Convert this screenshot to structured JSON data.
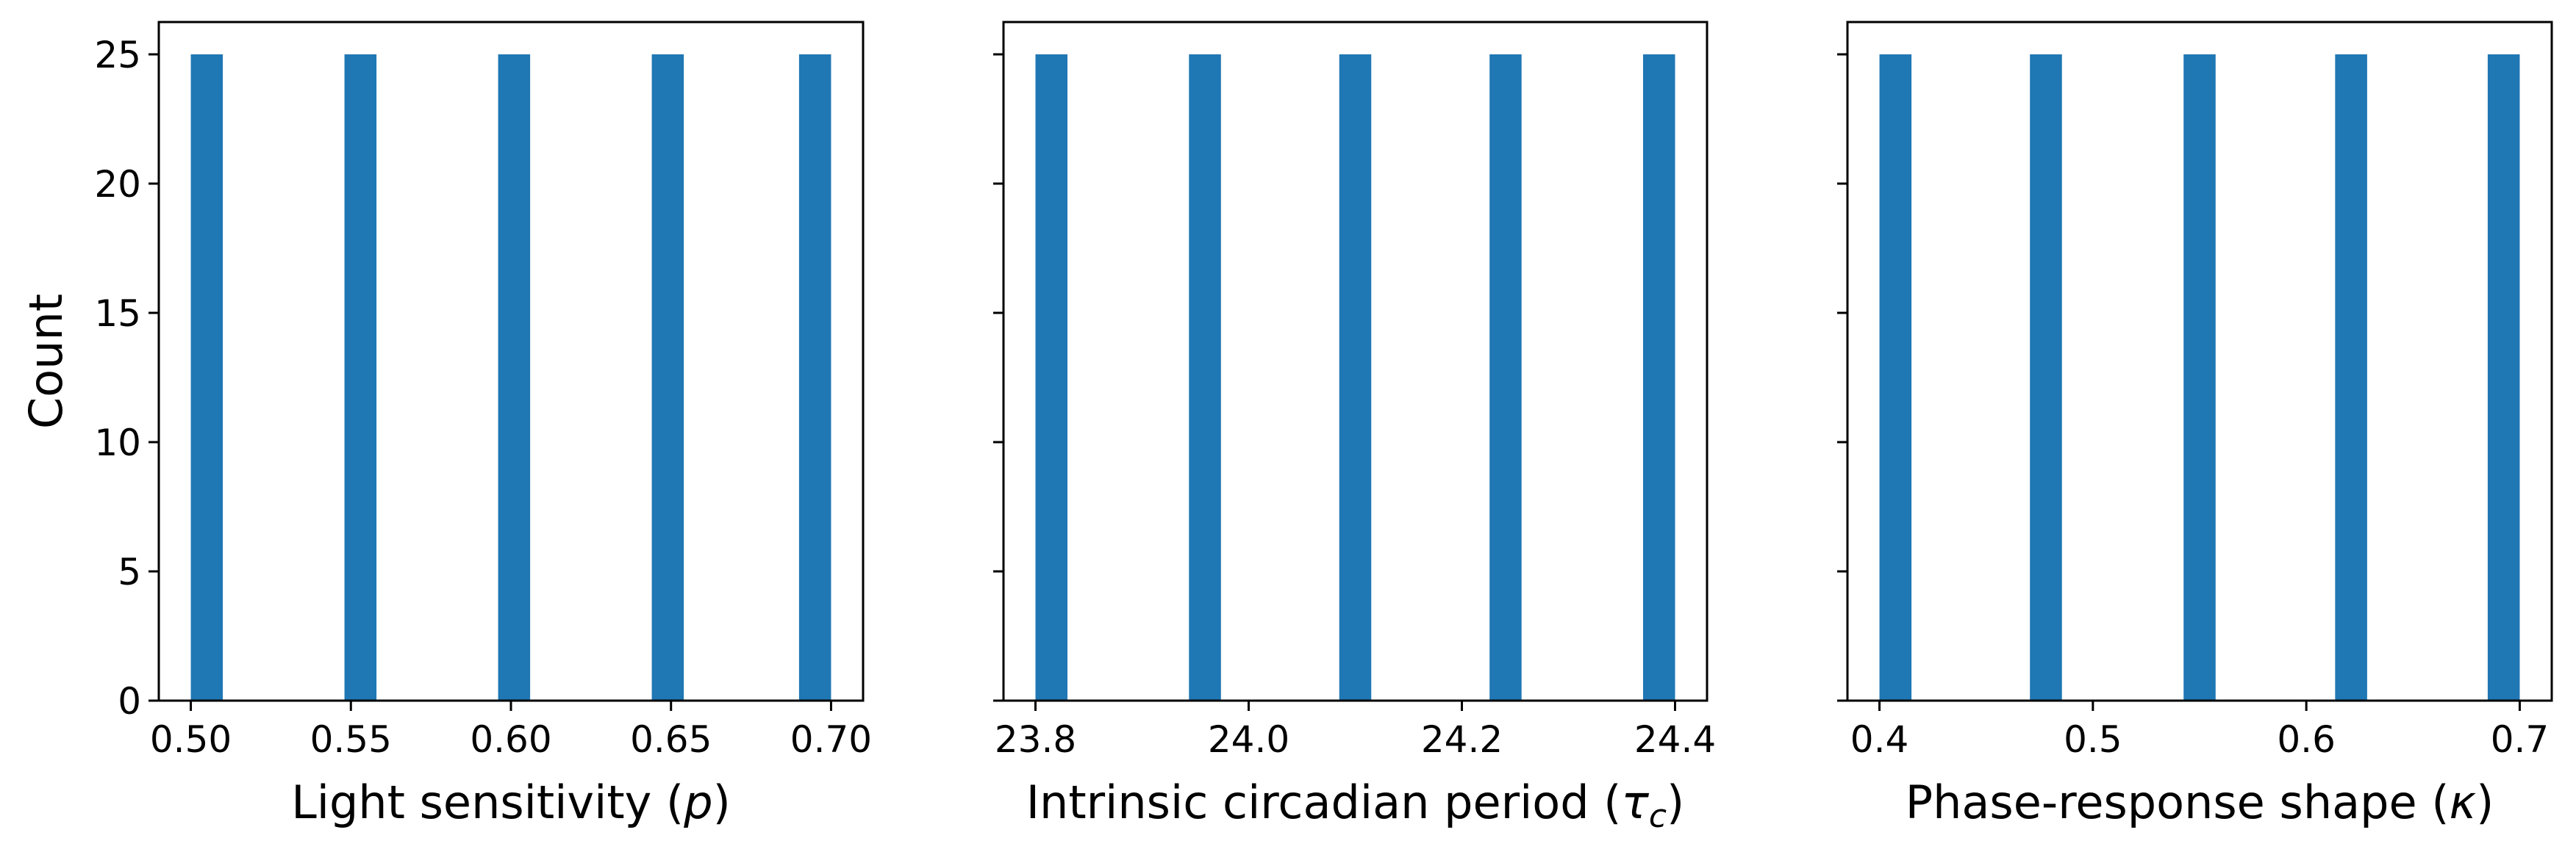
{
  "chart_data": [
    {
      "type": "bar",
      "title": "",
      "xlabel": "Light sensitivity  (p)",
      "xlabel_parts": [
        {
          "text": "Light sensitivity  (",
          "italic": false
        },
        {
          "text": "p",
          "italic": true
        },
        {
          "text": ")",
          "italic": false
        }
      ],
      "ylabel": "Count",
      "xlim": [
        0.49,
        0.71
      ],
      "ylim": [
        0,
        26.25
      ],
      "xticks": [
        0.5,
        0.55,
        0.6,
        0.65,
        0.7
      ],
      "xtick_labels": [
        "0.50",
        "0.55",
        "0.60",
        "0.65",
        "0.70"
      ],
      "yticks": [
        0,
        5,
        10,
        15,
        20,
        25
      ],
      "ytick_labels": [
        "0",
        "5",
        "10",
        "15",
        "20",
        "25"
      ],
      "show_ytick_labels": true,
      "bars": [
        {
          "x0": 0.5,
          "x1": 0.51,
          "count": 25
        },
        {
          "x0": 0.548,
          "x1": 0.558,
          "count": 25
        },
        {
          "x0": 0.596,
          "x1": 0.606,
          "count": 25
        },
        {
          "x0": 0.644,
          "x1": 0.654,
          "count": 25
        },
        {
          "x0": 0.69,
          "x1": 0.7,
          "count": 25
        }
      ]
    },
    {
      "type": "bar",
      "title": "",
      "xlabel": "Intrinsic circadian period (τc)",
      "xlabel_parts": [
        {
          "text": "Intrinsic circadian period (",
          "italic": false
        },
        {
          "text": "τ",
          "italic": true
        },
        {
          "text": "c",
          "italic": true,
          "sub": true
        },
        {
          "text": ")",
          "italic": false
        }
      ],
      "ylabel": "",
      "xlim": [
        23.77,
        24.43
      ],
      "ylim": [
        0,
        26.25
      ],
      "xticks": [
        23.8,
        24.0,
        24.2,
        24.4
      ],
      "xtick_labels": [
        "23.8",
        "24.0",
        "24.2",
        "24.4"
      ],
      "yticks": [
        0,
        5,
        10,
        15,
        20,
        25
      ],
      "ytick_labels": [],
      "show_ytick_labels": false,
      "bars": [
        {
          "x0": 23.8,
          "x1": 23.83,
          "count": 25
        },
        {
          "x0": 23.944,
          "x1": 23.974,
          "count": 25
        },
        {
          "x0": 24.085,
          "x1": 24.115,
          "count": 25
        },
        {
          "x0": 24.226,
          "x1": 24.256,
          "count": 25
        },
        {
          "x0": 24.37,
          "x1": 24.4,
          "count": 25
        }
      ]
    },
    {
      "type": "bar",
      "title": "",
      "xlabel": "Phase-response shape (κ)",
      "xlabel_parts": [
        {
          "text": "Phase-response shape (",
          "italic": false
        },
        {
          "text": "κ",
          "italic": true
        },
        {
          "text": ")",
          "italic": false
        }
      ],
      "ylabel": "",
      "xlim": [
        0.385,
        0.715
      ],
      "ylim": [
        0,
        26.25
      ],
      "xticks": [
        0.4,
        0.5,
        0.6,
        0.7
      ],
      "xtick_labels": [
        "0.4",
        "0.5",
        "0.6",
        "0.7"
      ],
      "yticks": [
        0,
        5,
        10,
        15,
        20,
        25
      ],
      "ytick_labels": [],
      "show_ytick_labels": false,
      "bars": [
        {
          "x0": 0.4,
          "x1": 0.415,
          "count": 25
        },
        {
          "x0": 0.4705,
          "x1": 0.4855,
          "count": 25
        },
        {
          "x0": 0.5425,
          "x1": 0.5575,
          "count": 25
        },
        {
          "x0": 0.6135,
          "x1": 0.6285,
          "count": 25
        },
        {
          "x0": 0.685,
          "x1": 0.7,
          "count": 25
        }
      ]
    }
  ],
  "colors": {
    "bar": "#1f77b4",
    "axis": "#000000",
    "background": "#ffffff"
  }
}
